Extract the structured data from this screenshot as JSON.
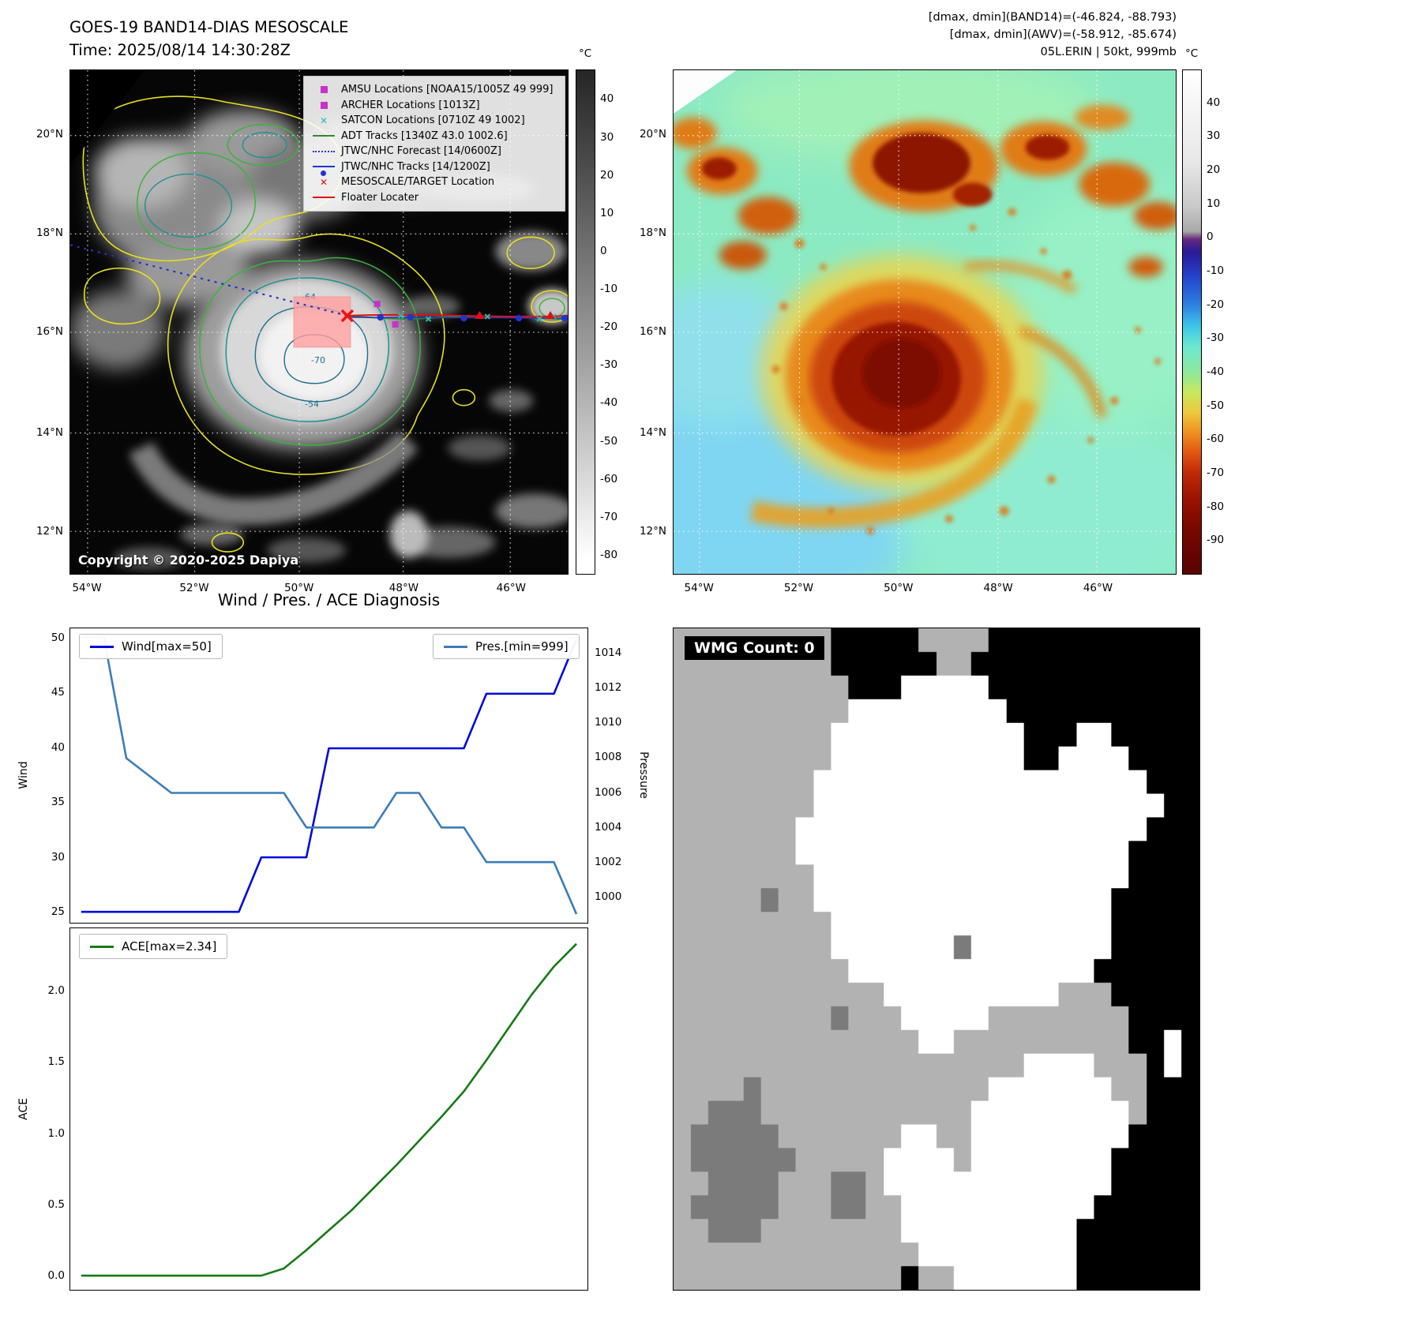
{
  "band14_panel": {
    "title_line1": "GOES-19 BAND14-DIAS MESOSCALE",
    "title_line2": "Time: 2025/08/14 14:30:28Z",
    "copyright": "Copyright © 2020-2025 Dapiya",
    "colorbar_unit": "°C",
    "colorbar_ticks": [
      40,
      30,
      20,
      10,
      0,
      -10,
      -20,
      -30,
      -40,
      -50,
      -60,
      -70,
      -80
    ],
    "lat_labels": [
      "20°N",
      "18°N",
      "16°N",
      "14°N",
      "12°N"
    ],
    "lon_labels": [
      "54°W",
      "52°W",
      "50°W",
      "48°W",
      "46°W"
    ],
    "contour_labels": [
      "-64",
      "-70",
      "-54"
    ],
    "legend_items": [
      {
        "label": "AMSU Locations [NOAA15/1005Z 49 999]",
        "type": "square",
        "color": "#c832c8"
      },
      {
        "label": "ARCHER Locations [1013Z]",
        "type": "square",
        "color": "#c832c8"
      },
      {
        "label": "SATCON Locations [0710Z 49 1002]",
        "type": "x",
        "color": "#28b8b8"
      },
      {
        "label": "ADT Tracks [1340Z 43.0 1002.6]",
        "type": "line",
        "color": "#2e8b2e"
      },
      {
        "label": "JTWC/NHC Forecast [14/0600Z]",
        "type": "dotted",
        "color": "#2233cc"
      },
      {
        "label": "JTWC/NHC Tracks [14/1200Z]",
        "type": "line-marker",
        "color": "#2233cc"
      },
      {
        "label": "MESOSCALE/TARGET Location",
        "type": "x",
        "color": "#e01010"
      },
      {
        "label": "Floater Locater",
        "type": "line",
        "color": "#dd1111"
      }
    ]
  },
  "awv_panel": {
    "header_line1": "[dmax, dmin](BAND14)=(-46.824, -88.793)",
    "header_line2": "[dmax, dmin](AWV)=(-58.912, -85.674)",
    "header_line3": "05L.ERIN | 50kt, 999mb",
    "colorbar_unit": "°C",
    "colorbar_ticks": [
      40,
      30,
      20,
      10,
      0,
      -10,
      -20,
      -30,
      -40,
      -50,
      -60,
      -70,
      -80,
      -90
    ],
    "lat_labels": [
      "20°N",
      "18°N",
      "16°N",
      "14°N",
      "12°N"
    ],
    "lon_labels": [
      "54°W",
      "52°W",
      "50°W",
      "48°W",
      "46°W"
    ]
  },
  "chart_data": [
    {
      "type": "line",
      "title": "Wind / Pres. / ACE Diagnosis",
      "x": [
        0,
        1,
        2,
        3,
        4,
        5,
        6,
        7,
        8,
        9,
        10,
        11,
        12,
        13,
        14,
        15,
        16,
        17,
        18,
        19,
        20,
        21,
        22
      ],
      "series": [
        {
          "name": "Wind[max=50]",
          "axis": "left",
          "color": "#0008dd",
          "values": [
            25,
            25,
            25,
            25,
            25,
            25,
            25,
            25,
            30,
            30,
            30,
            40,
            40,
            40,
            40,
            40,
            40,
            40,
            45,
            45,
            45,
            45,
            50
          ]
        },
        {
          "name": "Pres.[min=999]",
          "axis": "right",
          "color": "#3b7cb8",
          "values": [
            1015,
            1015,
            1008,
            1007,
            1006,
            1006,
            1006,
            1006,
            1006,
            1006,
            1004,
            1004,
            1004,
            1004,
            1006,
            1006,
            1004,
            1004,
            1002,
            1002,
            1002,
            1002,
            999
          ]
        }
      ],
      "ylabel_left": "Wind",
      "ylabel_right": "Pressure",
      "ylim_left": [
        24,
        51
      ],
      "yticks_left": [
        25,
        30,
        35,
        40,
        45,
        50
      ],
      "ytick_decimals_left": 0,
      "ylim_right": [
        998.5,
        1015.5
      ],
      "yticks_right": [
        1000,
        1002,
        1004,
        1006,
        1008,
        1010,
        1012,
        1014
      ],
      "legend": [
        "Wind[max=50]",
        "Pres.[min=999]"
      ],
      "grid": false
    },
    {
      "type": "line",
      "x": [
        0,
        1,
        2,
        3,
        4,
        5,
        6,
        7,
        8,
        9,
        10,
        11,
        12,
        13,
        14,
        15,
        16,
        17,
        18,
        19,
        20,
        21,
        22
      ],
      "series": [
        {
          "name": "ACE[max=2.34]",
          "axis": "left",
          "color": "#157a15",
          "values": [
            0,
            0,
            0,
            0,
            0,
            0,
            0,
            0,
            0,
            0.05,
            0.18,
            0.32,
            0.46,
            0.62,
            0.78,
            0.95,
            1.12,
            1.3,
            1.52,
            1.75,
            1.98,
            2.18,
            2.34
          ]
        }
      ],
      "ylabel_left": "ACE",
      "ylim_left": [
        -0.1,
        2.45
      ],
      "yticks_left": [
        0.0,
        0.5,
        1.0,
        1.5,
        2.0
      ],
      "ytick_decimals_left": 1,
      "legend": [
        "ACE[max=2.34]"
      ],
      "grid": false
    }
  ],
  "wmg_panel": {
    "count_label": "WMG Count: 0",
    "palette": {
      "W": "#ffffff",
      "L": "#b2b2b2",
      "D": "#7b7b7b",
      "B": "#000000"
    },
    "grid_rows": [
      "LLLLLLLLLBBBBBLLLLBBBBBBBBBBBB",
      "LLLLLLLLLBBBBBBLLBBBBBBBBBBBBB",
      "LLLLLLLLLLBBBWWWWWBBBBBBBBBBBB",
      "LLLLLLLLLLWWWWWWWWWBBBBBBBBBBB",
      "LLLLLLLLLWWWWWWWWWWWBBBWWBBBBB",
      "LLLLLLLLLWWWWWWWWWWWBBWWWWBBBB",
      "LLLLLLLLWWWWWWWWWWWWWWWWWWWBBB",
      "LLLLLLLLWWWWWWWWWWWWWWWWWWWWBB",
      "LLLLLLLWWWWWWWWWWWWWWWWWWWWBBB",
      "LLLLLLLWWWWWWWWWWWWWWWWWWWBBBB",
      "LLLLLLLLWWWWWWWWWWWWWWWWWWBBBB",
      "LLLLLDLLWWWWWWWWWWWWWWWWWBBBBB",
      "LLLLLLLLLWWWWWWWWWWWWWWWWBBBBB",
      "LLLLLLLLLWWWWWWWDWWWWWWWWBBBBB",
      "LLLLLLLLLLWWWWWWWWWWWWWWBBBBBB",
      "LLLLLLLLLLLLWWWWWWWWWWLLLBBBBB",
      "LLLLLLLLLDLLLWWWWWLLLLLLLLBBBB",
      "LLLLLLLLLLLLLLWWLLLLLLLLLLBBWB",
      "LLLLLLLLLLLLLLLLLLLLWWWWLLLBWB",
      "LLLLDLLLLLLLLLLLLLWWWWWWWLLBBB",
      "LLDDDLLLLLLLLLLLLWWWWWWWWWLBBB",
      "LDDDDDLLLLLLLWWLLWWWWWWWWWBBBB",
      "LDDDDDDLLLLLWWWWLWWWWWWWWBBBBB",
      "LLDDDDLLLDDLWWWWWWWWWWWWWBBBBB",
      "LDDDDDLLLDDLLWWWWWWWWWWWBBBBBB",
      "LLDDDLLLLLLLLWWWWWWWWWWBBBBBBB",
      "LLLLLLLLLLLLLLWWWWWWWWWBBBBBBB",
      "LLLLLLLLLLLLLBLLWWWWWWWBBBBBBB"
    ]
  }
}
